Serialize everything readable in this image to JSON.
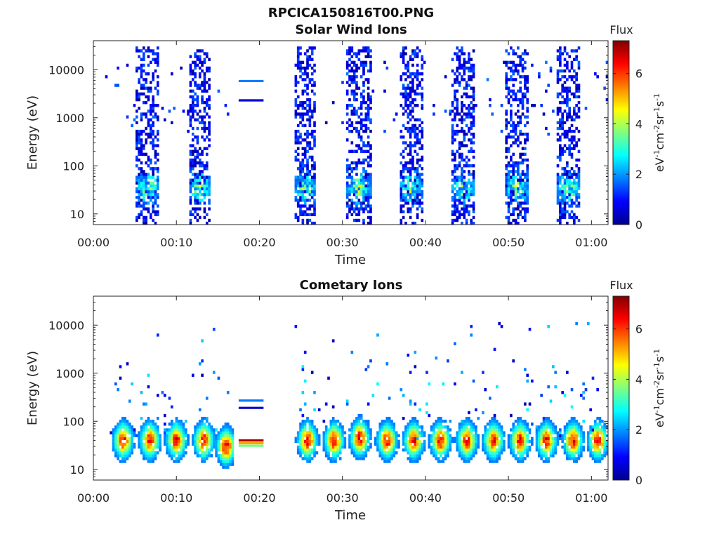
{
  "figure": {
    "title": "RPCICA150816T00.PNG"
  },
  "colors": {
    "axis": "#222222",
    "colormap": "jet"
  },
  "chart_data": [
    {
      "type": "heatmap",
      "title": "Solar Wind Ions",
      "xlabel": "Time",
      "ylabel": "Energy (eV)",
      "y_scale": "log",
      "xlim": [
        "00:00",
        "01:02"
      ],
      "ylim": [
        6,
        40000
      ],
      "x_tick_labels": [
        "00:00",
        "00:10",
        "00:20",
        "00:30",
        "00:40",
        "00:50",
        "01:00"
      ],
      "y_tick_labels": [
        "10",
        "100",
        "1000",
        "10000"
      ],
      "colorbar": {
        "label": "Flux",
        "unit": "eV",
        "unit_sup1": "-1",
        "unit_mid": "cm",
        "unit_sup2": "-2",
        "unit_mid2": "sr",
        "unit_sup3": "-1",
        "unit_mid3": "s",
        "unit_sup4": "-1",
        "range": [
          0,
          7.3
        ],
        "tick_labels": [
          "0",
          "2",
          "4",
          "6"
        ]
      },
      "data_gap_minutes": [
        16.8,
        24.0
      ],
      "bursts": [
        {
          "start_minute": 5.2,
          "end_minute": 8.0,
          "core_energy_ev": 35,
          "high_energy_ev": 8000
        },
        {
          "start_minute": 11.5,
          "end_minute": 14.2,
          "core_energy_ev": 35,
          "high_energy_ev": 8000
        },
        {
          "start_minute": 24.2,
          "end_minute": 26.8,
          "core_energy_ev": 35,
          "high_energy_ev": 8000
        },
        {
          "start_minute": 30.5,
          "end_minute": 33.5,
          "core_energy_ev": 35,
          "high_energy_ev": 8000
        },
        {
          "start_minute": 36.8,
          "end_minute": 39.6,
          "core_energy_ev": 35,
          "high_energy_ev": 8000
        },
        {
          "start_minute": 43.1,
          "end_minute": 45.9,
          "core_energy_ev": 35,
          "high_energy_ev": 8000
        },
        {
          "start_minute": 49.5,
          "end_minute": 52.5,
          "core_energy_ev": 35,
          "high_energy_ev": 8000
        },
        {
          "start_minute": 55.8,
          "end_minute": 58.7,
          "core_energy_ev": 35,
          "high_energy_ev": 8000
        }
      ],
      "constant_lines": [
        {
          "start_minute": 17.5,
          "end_minute": 20.5,
          "energy_ev": 5800,
          "flux": 1.8
        },
        {
          "start_minute": 17.5,
          "end_minute": 20.5,
          "energy_ev": 2300,
          "flux": 0.6
        }
      ]
    },
    {
      "type": "heatmap",
      "title": "Cometary Ions",
      "xlabel": "Time",
      "ylabel": "Energy (eV)",
      "y_scale": "log",
      "xlim": [
        "00:00",
        "01:02"
      ],
      "ylim": [
        6,
        40000
      ],
      "x_tick_labels": [
        "00:00",
        "00:10",
        "00:20",
        "00:30",
        "00:40",
        "00:50",
        "01:00"
      ],
      "y_tick_labels": [
        "10",
        "100",
        "1000",
        "10000"
      ],
      "colorbar": {
        "label": "Flux",
        "unit": "eV",
        "unit_sup1": "-1",
        "unit_mid": "cm",
        "unit_sup2": "-2",
        "unit_mid2": "sr",
        "unit_sup3": "-1",
        "unit_mid3": "s",
        "unit_sup4": "-1",
        "range": [
          0,
          7.3
        ],
        "tick_labels": [
          "0",
          "2",
          "4",
          "6"
        ]
      },
      "data_gap_minutes": [
        16.8,
        24.0
      ],
      "bursts": [
        {
          "center_minute": 3.6,
          "core_energy_ev": 40
        },
        {
          "center_minute": 6.8,
          "core_energy_ev": 40
        },
        {
          "center_minute": 10.0,
          "core_energy_ev": 40
        },
        {
          "center_minute": 13.3,
          "core_energy_ev": 40
        },
        {
          "center_minute": 16.0,
          "core_energy_ev": 30
        },
        {
          "center_minute": 25.8,
          "core_energy_ev": 40
        },
        {
          "center_minute": 29.0,
          "core_energy_ev": 40
        },
        {
          "center_minute": 32.1,
          "core_energy_ev": 45
        },
        {
          "center_minute": 35.4,
          "core_energy_ev": 40
        },
        {
          "center_minute": 38.6,
          "core_energy_ev": 40
        },
        {
          "center_minute": 41.8,
          "core_energy_ev": 40
        },
        {
          "center_minute": 45.0,
          "core_energy_ev": 40
        },
        {
          "center_minute": 48.2,
          "core_energy_ev": 40
        },
        {
          "center_minute": 51.4,
          "core_energy_ev": 40
        },
        {
          "center_minute": 54.6,
          "core_energy_ev": 40
        },
        {
          "center_minute": 57.8,
          "core_energy_ev": 40
        },
        {
          "center_minute": 60.8,
          "core_energy_ev": 40
        }
      ],
      "constant_lines": [
        {
          "start_minute": 17.5,
          "end_minute": 20.5,
          "energy_ev": 270,
          "flux": 1.8
        },
        {
          "start_minute": 17.5,
          "end_minute": 20.5,
          "energy_ev": 190,
          "flux": 0.6
        },
        {
          "start_minute": 17.5,
          "end_minute": 20.5,
          "energy_ev": 40,
          "flux": 7.0
        },
        {
          "start_minute": 17.5,
          "end_minute": 20.5,
          "energy_ev": 35,
          "flux": 5.2
        },
        {
          "start_minute": 17.5,
          "end_minute": 20.5,
          "energy_ev": 31,
          "flux": 3.6
        }
      ]
    }
  ]
}
